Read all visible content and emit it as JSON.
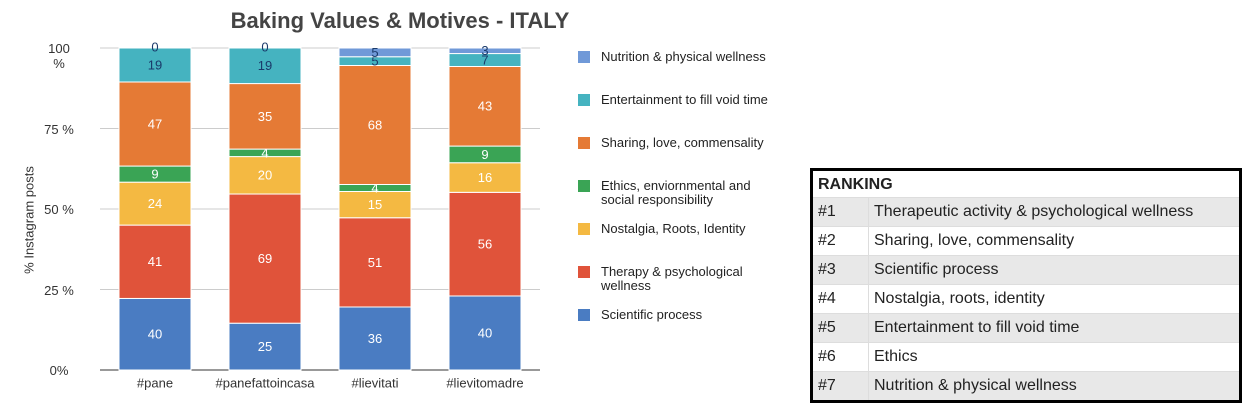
{
  "chart_data": {
    "type": "stacked_percent",
    "title": "Baking Values & Motives - ITALY",
    "ylabel": "% Instagram posts",
    "categories": [
      "#pane",
      "#panefattoincasa",
      "#lievitati",
      "#lievitomadre"
    ],
    "series": [
      {
        "name": "Scientific process",
        "color": "#4a7cc2",
        "values": [
          40,
          25,
          36,
          40
        ]
      },
      {
        "name": "Therapy & psychological wellness",
        "color": "#e0533a",
        "values": [
          41,
          69,
          51,
          56
        ]
      },
      {
        "name": "Nostalgia, Roots, Identity",
        "color": "#f4b942",
        "values": [
          24,
          20,
          15,
          16
        ]
      },
      {
        "name": "Ethics, enviornmental and social responsibility",
        "color": "#3aa455",
        "values": [
          9,
          4,
          4,
          9
        ]
      },
      {
        "name": "Sharing, love, commensality",
        "color": "#e57a35",
        "values": [
          47,
          35,
          68,
          43
        ]
      },
      {
        "name": "Entertainment to fill void time",
        "color": "#45b3c0",
        "values": [
          19,
          19,
          5,
          7
        ]
      },
      {
        "name": "Nutrition & physical wellness",
        "color": "#7099d8",
        "values": [
          0,
          0,
          5,
          3
        ]
      }
    ],
    "ylim": [
      0,
      100
    ],
    "yticks": [
      {
        "value": 0,
        "label": "0%"
      },
      {
        "value": 25,
        "label": "25 %"
      },
      {
        "value": 50,
        "label": "50 %"
      },
      {
        "value": 75,
        "label": "75 %"
      },
      {
        "value": 100,
        "label": "100 %"
      }
    ],
    "grid": true
  },
  "ranking": {
    "title": "RANKING",
    "rows": [
      [
        "#1",
        "Therapeutic activity & psychological wellness"
      ],
      [
        "#2",
        "Sharing, love, commensality"
      ],
      [
        "#3",
        "Scientific process"
      ],
      [
        "#4",
        "Nostalgia, roots, identity"
      ],
      [
        "#5",
        "Entertainment to fill void time"
      ],
      [
        "#6",
        "Ethics"
      ],
      [
        "#7",
        "Nutrition & physical wellness"
      ]
    ]
  }
}
